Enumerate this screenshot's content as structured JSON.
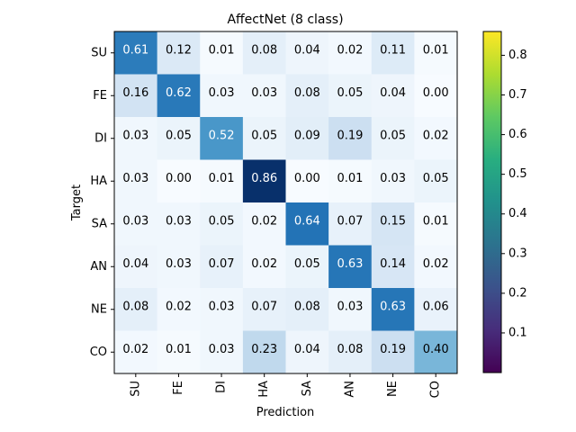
{
  "chart_data": {
    "type": "heatmap",
    "title": "AffectNet (8 class)",
    "xlabel": "Prediction",
    "ylabel": "Target",
    "x_categories": [
      "SU",
      "FE",
      "DI",
      "HA",
      "SA",
      "AN",
      "NE",
      "CO"
    ],
    "y_categories": [
      "SU",
      "FE",
      "DI",
      "HA",
      "SA",
      "AN",
      "NE",
      "CO"
    ],
    "values": [
      [
        0.61,
        0.12,
        0.01,
        0.08,
        0.04,
        0.02,
        0.11,
        0.01
      ],
      [
        0.16,
        0.62,
        0.03,
        0.03,
        0.08,
        0.05,
        0.04,
        0.0
      ],
      [
        0.03,
        0.05,
        0.52,
        0.05,
        0.09,
        0.19,
        0.05,
        0.02
      ],
      [
        0.03,
        0.0,
        0.01,
        0.86,
        0.0,
        0.01,
        0.03,
        0.05
      ],
      [
        0.03,
        0.03,
        0.05,
        0.02,
        0.64,
        0.07,
        0.15,
        0.01
      ],
      [
        0.04,
        0.03,
        0.07,
        0.02,
        0.05,
        0.63,
        0.14,
        0.02
      ],
      [
        0.08,
        0.02,
        0.03,
        0.07,
        0.08,
        0.03,
        0.63,
        0.06
      ],
      [
        0.02,
        0.01,
        0.03,
        0.23,
        0.04,
        0.08,
        0.19,
        0.4
      ]
    ],
    "cell_colormap": "Blues",
    "colorbar": {
      "colormap": "viridis",
      "range": [
        0,
        0.86
      ],
      "ticks": [
        0.1,
        0.2,
        0.3,
        0.4,
        0.5,
        0.6,
        0.7,
        0.8
      ],
      "tick_labels": [
        "0.1",
        "0.2",
        "0.3",
        "0.4",
        "0.5",
        "0.6",
        "0.7",
        "0.8"
      ]
    },
    "grid": false
  }
}
